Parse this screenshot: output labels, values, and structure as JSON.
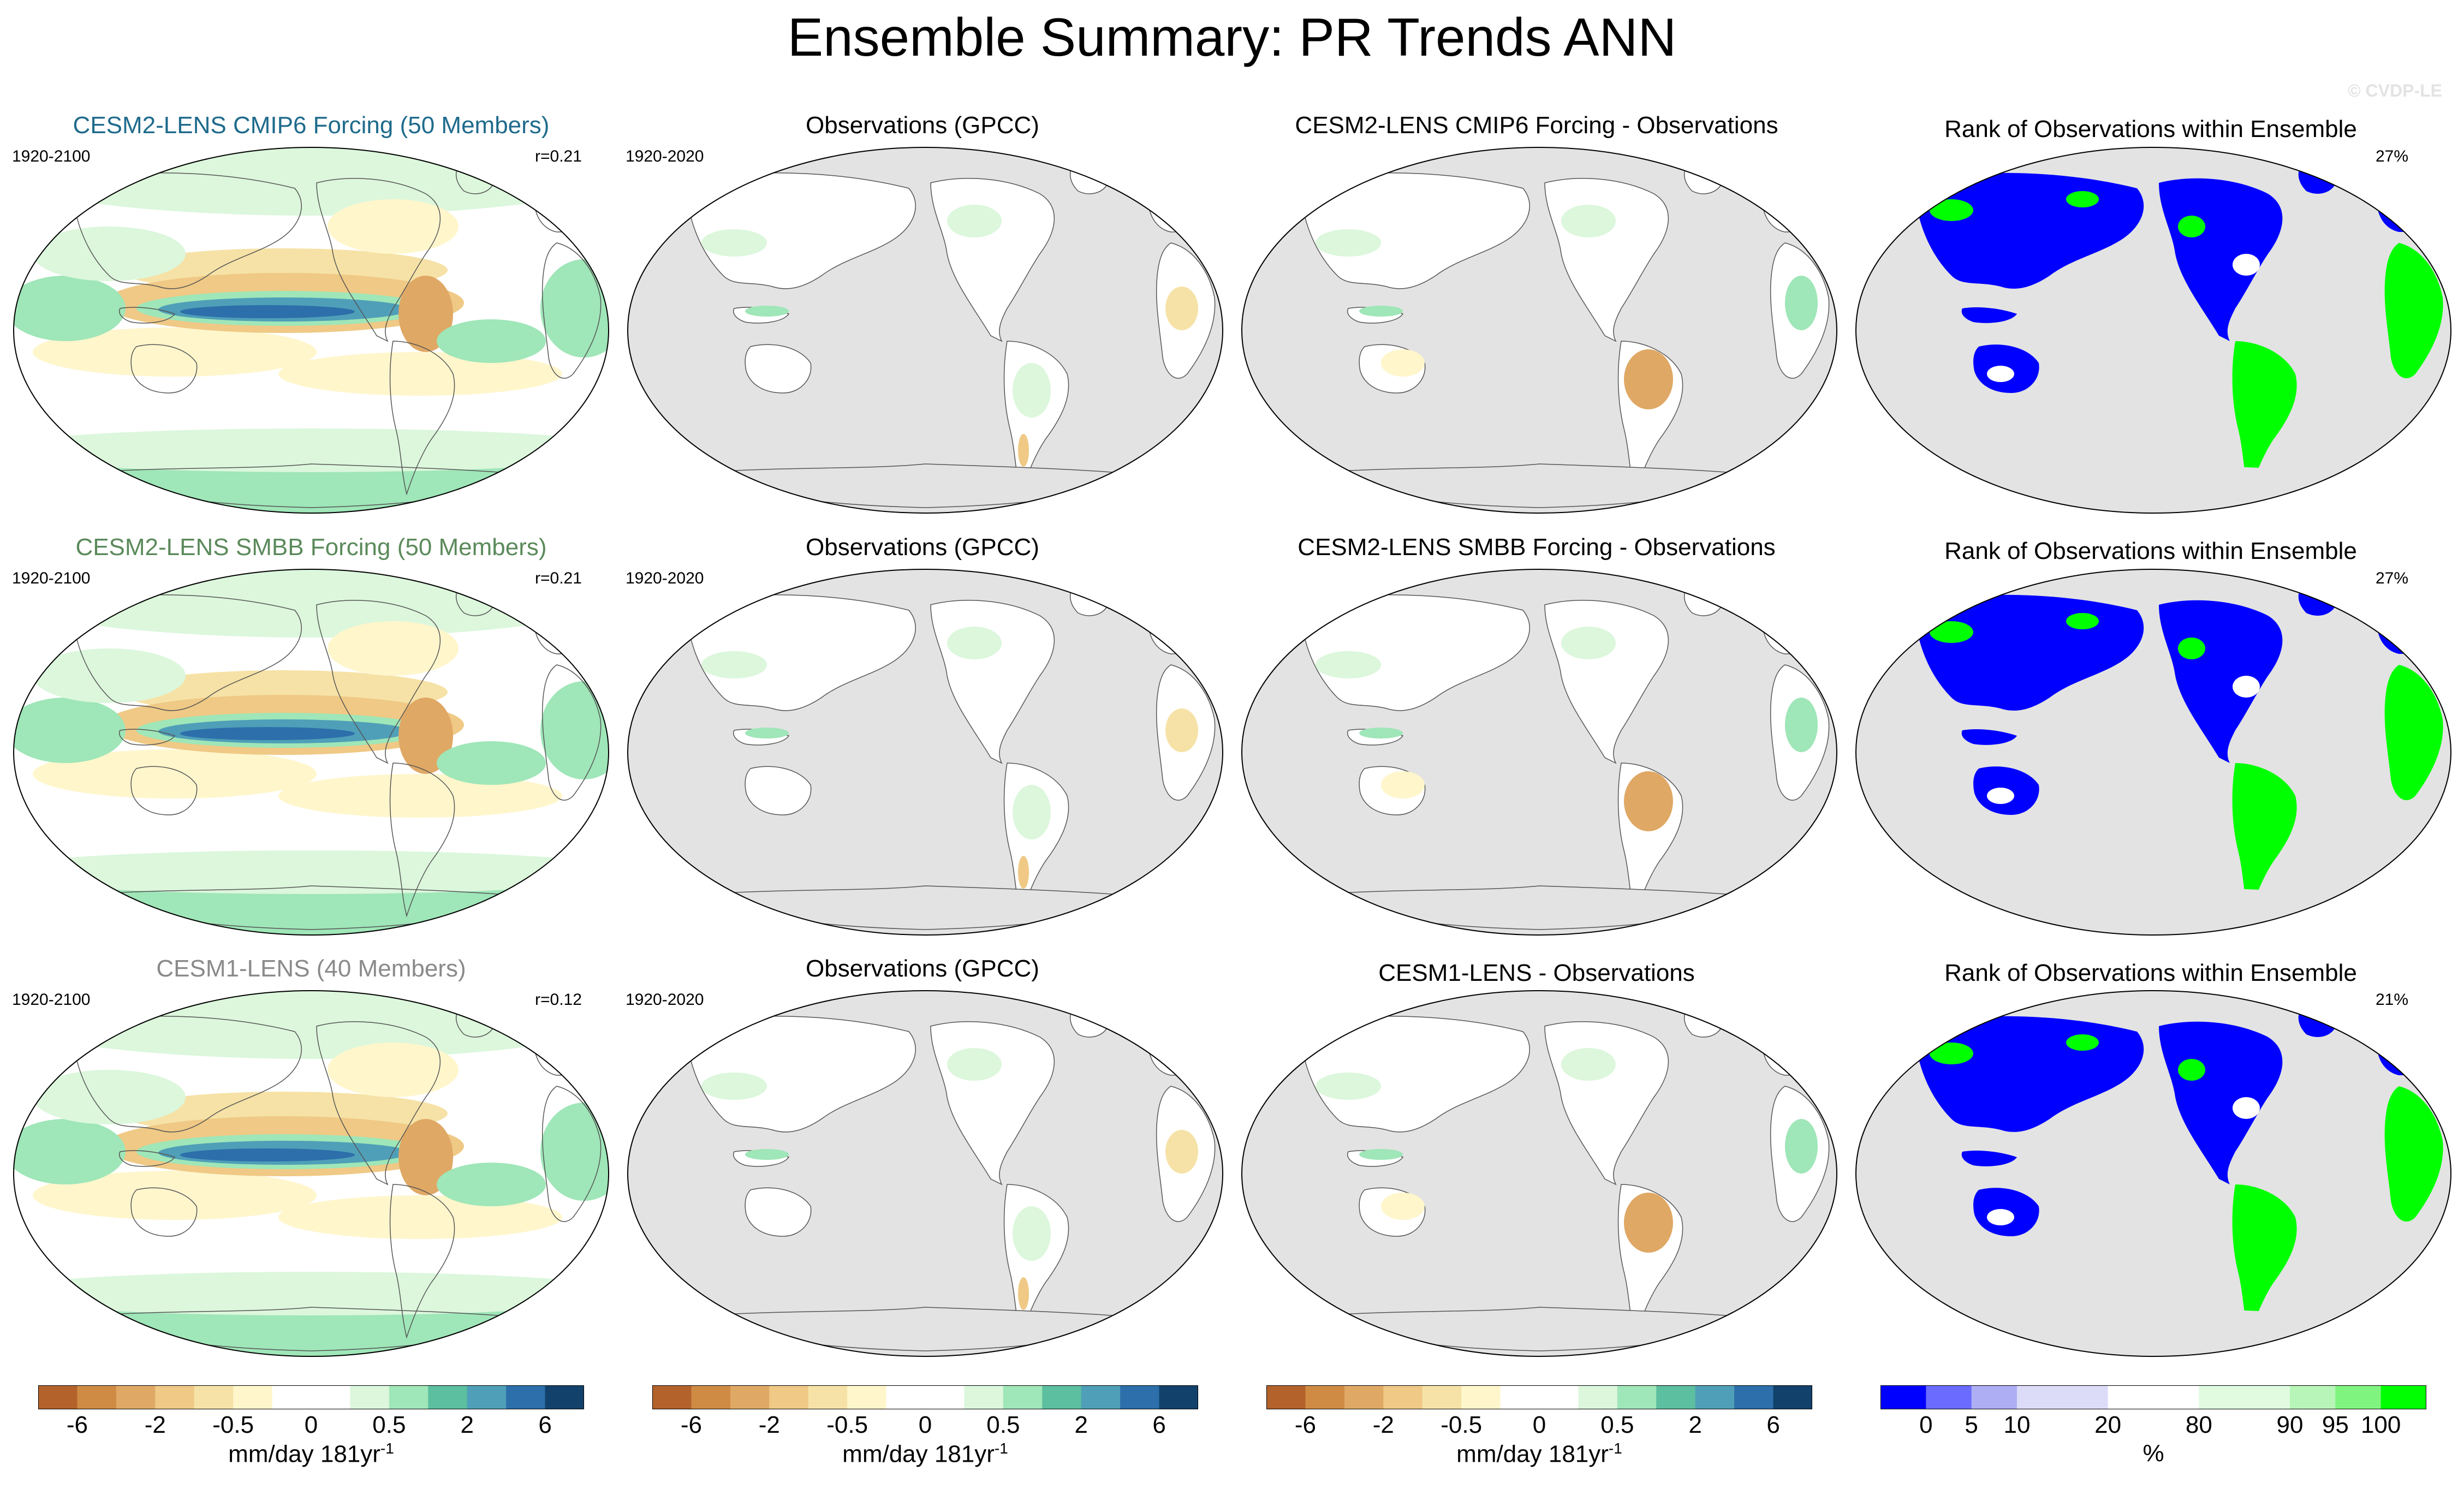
{
  "title": "Ensemble Summary: PR Trends ANN",
  "watermark": "© CVDP-LE",
  "chart_data": [
    {
      "type": "heatmap",
      "row": 1,
      "col": 1,
      "title": "CESM2-LENS CMIP6 Forcing (50 Members)",
      "title_color": "#1f6b8c",
      "period": "1920-2100",
      "corr": "r=0.21"
    },
    {
      "type": "heatmap",
      "row": 1,
      "col": 2,
      "title": "Observations (GPCC)",
      "period": "1920-2020"
    },
    {
      "type": "heatmap",
      "row": 1,
      "col": 3,
      "title": "CESM2-LENS CMIP6 Forcing - Observations"
    },
    {
      "type": "heatmap",
      "row": 1,
      "col": 4,
      "title": "Rank of Observations within Ensemble",
      "percent": "27%"
    },
    {
      "type": "heatmap",
      "row": 2,
      "col": 1,
      "title": "CESM2-LENS SMBB Forcing (50 Members)",
      "title_color": "#5b8a5b",
      "period": "1920-2100",
      "corr": "r=0.21"
    },
    {
      "type": "heatmap",
      "row": 2,
      "col": 2,
      "title": "Observations (GPCC)",
      "period": "1920-2020"
    },
    {
      "type": "heatmap",
      "row": 2,
      "col": 3,
      "title": "CESM2-LENS SMBB Forcing - Observations"
    },
    {
      "type": "heatmap",
      "row": 2,
      "col": 4,
      "title": "Rank of Observations within Ensemble",
      "percent": "27%"
    },
    {
      "type": "heatmap",
      "row": 3,
      "col": 1,
      "title": "CESM1-LENS (40 Members)",
      "title_color": "#8a8a8a",
      "period": "1920-2100",
      "corr": "r=0.12"
    },
    {
      "type": "heatmap",
      "row": 3,
      "col": 2,
      "title": "Observations (GPCC)",
      "period": "1920-2020"
    },
    {
      "type": "heatmap",
      "row": 3,
      "col": 3,
      "title": "CESM1-LENS - Observations"
    },
    {
      "type": "heatmap",
      "row": 3,
      "col": 4,
      "title": "Rank of Observations within Ensemble",
      "percent": "21%"
    }
  ],
  "trend_colorbar": {
    "colors": [
      "#b2622a",
      "#cf8a44",
      "#e0a865",
      "#efc985",
      "#f6e2a6",
      "#fff6cc",
      "#ffffff",
      "#ffffff",
      "#dcf7dc",
      "#9fe6b8",
      "#5cbf9f",
      "#4f9fb8",
      "#2c6faa",
      "#12416b"
    ],
    "tick_labels": [
      "-6",
      "-2",
      "-0.5",
      "0",
      "0.5",
      "2",
      "6"
    ],
    "tick_boundaries": [
      1,
      3,
      5,
      7,
      9,
      11,
      13
    ],
    "unit": "mm/day 181yr",
    "unit_sup": "-1"
  },
  "rank_colorbar": {
    "colors": [
      "#0000ff",
      "#6b6bff",
      "#aeaef5",
      "#dcdcf9",
      "#dcdcf9",
      "#ffffff",
      "#ffffff",
      "#e0fbe0",
      "#e0fbe0",
      "#b8f5b8",
      "#7ff57f",
      "#00ff00"
    ],
    "tick_labels": [
      "0",
      "5",
      "10",
      "20",
      "80",
      "90",
      "95",
      "100"
    ],
    "tick_boundaries": [
      1,
      2,
      3,
      5,
      7,
      9,
      10,
      11
    ],
    "unit": "%"
  }
}
